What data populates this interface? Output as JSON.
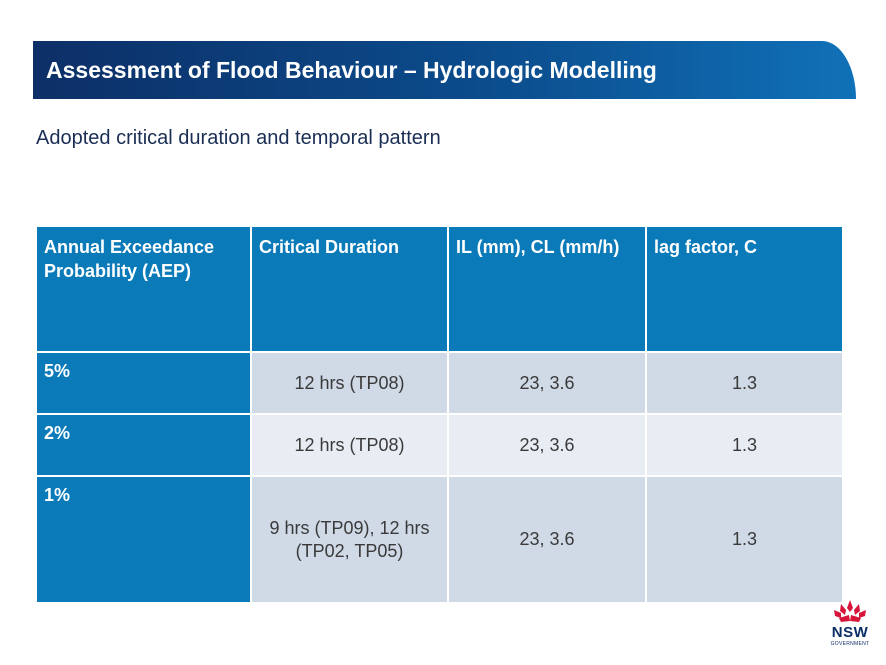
{
  "title": "Assessment of Flood Behaviour – Hydrologic Modelling",
  "subtitle": "Adopted critical duration and temporal pattern",
  "table": {
    "headers": [
      "Annual Exceedance Probability (AEP)",
      "Critical Duration",
      "IL (mm), CL (mm/h)",
      "lag factor, C"
    ],
    "rows": [
      {
        "aep": "5%",
        "duration": "12 hrs (TP08)",
        "losses": "23, 3.6",
        "lag": "1.3"
      },
      {
        "aep": "2%",
        "duration": "12 hrs (TP08)",
        "losses": "23, 3.6",
        "lag": "1.3"
      },
      {
        "aep": "1%",
        "duration": "9 hrs (TP09), 12 hrs (TP02, TP05)",
        "losses": "23, 3.6",
        "lag": "1.3"
      }
    ]
  },
  "logo": {
    "text": "NSW",
    "subtext": "GOVERNMENT",
    "color": "#d7153a"
  },
  "colors": {
    "header_blue": "#0b7ab9",
    "title_navy": "#0d2f67",
    "cell_dark": "#d0d9e6",
    "cell_light": "#e8edf4"
  }
}
